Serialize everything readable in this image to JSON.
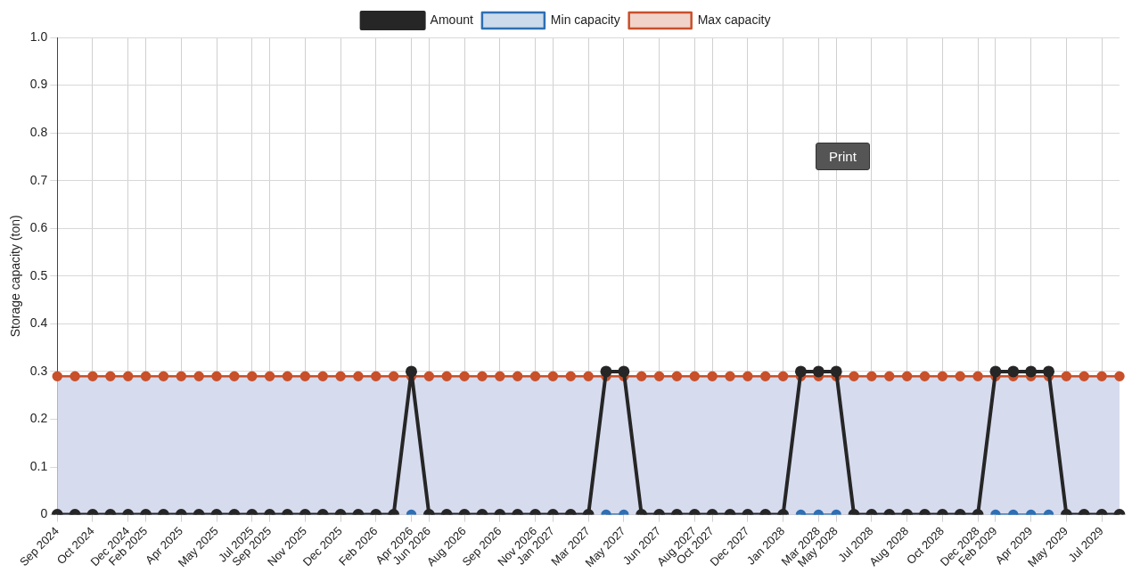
{
  "chart_data": {
    "type": "line",
    "ylabel": "Storage capacity (ton)",
    "categories": [
      "Sep 2024",
      null,
      "Oct 2024",
      null,
      "Dec 2024",
      "Feb 2025",
      null,
      "Apr 2025",
      null,
      "May 2025",
      null,
      "Jul 2025",
      "Sep 2025",
      null,
      "Nov 2025",
      null,
      "Dec 2025",
      null,
      "Feb 2026",
      null,
      "Apr 2026",
      "Jun 2026",
      null,
      "Aug 2026",
      null,
      "Sep 2026",
      null,
      "Nov 2026",
      "Jan 2027",
      null,
      "Mar 2027",
      null,
      "May 2027",
      null,
      "Jun 2027",
      null,
      "Aug 2027",
      "Oct 2027",
      null,
      "Dec 2027",
      null,
      "Jan 2028",
      null,
      "Mar 2028",
      "May 2028",
      null,
      "Jul 2028",
      null,
      "Aug 2028",
      null,
      "Oct 2028",
      null,
      "Dec 2028",
      "Feb 2029",
      null,
      "Apr 2029",
      null,
      "May 2029",
      null,
      "Jul 2029",
      null
    ],
    "series": [
      {
        "name": "Amount",
        "color": "#262626",
        "values": [
          0,
          0,
          0,
          0,
          0,
          0,
          0,
          0,
          0,
          0,
          0,
          0,
          0,
          0,
          0,
          0,
          0,
          0,
          0,
          0,
          0.3,
          0,
          0,
          0,
          0,
          0,
          0,
          0,
          0,
          0,
          0,
          0.3,
          0.3,
          0,
          0,
          0,
          0,
          0,
          0,
          0,
          0,
          0,
          0.3,
          0.3,
          0.3,
          0,
          0,
          0,
          0,
          0,
          0,
          0,
          0,
          0.3,
          0.3,
          0.3,
          0.3,
          0,
          0,
          0,
          0
        ]
      },
      {
        "name": "Min capacity",
        "color": "#2f6fb3",
        "values": [
          null,
          null,
          null,
          null,
          null,
          null,
          null,
          null,
          null,
          null,
          null,
          null,
          null,
          null,
          null,
          null,
          null,
          null,
          null,
          null,
          0,
          null,
          null,
          null,
          null,
          null,
          null,
          null,
          null,
          null,
          null,
          0,
          0,
          null,
          null,
          null,
          null,
          null,
          null,
          null,
          null,
          null,
          0,
          0,
          0,
          null,
          null,
          null,
          null,
          null,
          null,
          null,
          null,
          0,
          0,
          0,
          0,
          null,
          null,
          null,
          null
        ]
      },
      {
        "name": "Max capacity",
        "color": "#c8502a",
        "values": [
          0.29,
          0.29,
          0.29,
          0.29,
          0.29,
          0.29,
          0.29,
          0.29,
          0.29,
          0.29,
          0.29,
          0.29,
          0.29,
          0.29,
          0.29,
          0.29,
          0.29,
          0.29,
          0.29,
          0.29,
          0.29,
          0.29,
          0.29,
          0.29,
          0.29,
          0.29,
          0.29,
          0.29,
          0.29,
          0.29,
          0.29,
          0.29,
          0.29,
          0.29,
          0.29,
          0.29,
          0.29,
          0.29,
          0.29,
          0.29,
          0.29,
          0.29,
          0.29,
          0.29,
          0.29,
          0.29,
          0.29,
          0.29,
          0.29,
          0.29,
          0.29,
          0.29,
          0.29,
          0.29,
          0.29,
          0.29,
          0.29,
          0.29,
          0.29,
          0.29,
          0.29
        ]
      }
    ],
    "ylim": [
      0,
      1
    ],
    "yticks": [
      0,
      0.1,
      0.2,
      0.3,
      0.4,
      0.5,
      0.6,
      0.7,
      0.8,
      0.9,
      {
        "value": 1,
        "label": "1.0"
      }
    ],
    "bands": [
      {
        "axis": "y",
        "from": 0,
        "to": 0.29,
        "color": "#d6dbee"
      }
    ],
    "grid": true,
    "legend": "top",
    "marker": "circle",
    "annotations": [
      "Print"
    ]
  }
}
